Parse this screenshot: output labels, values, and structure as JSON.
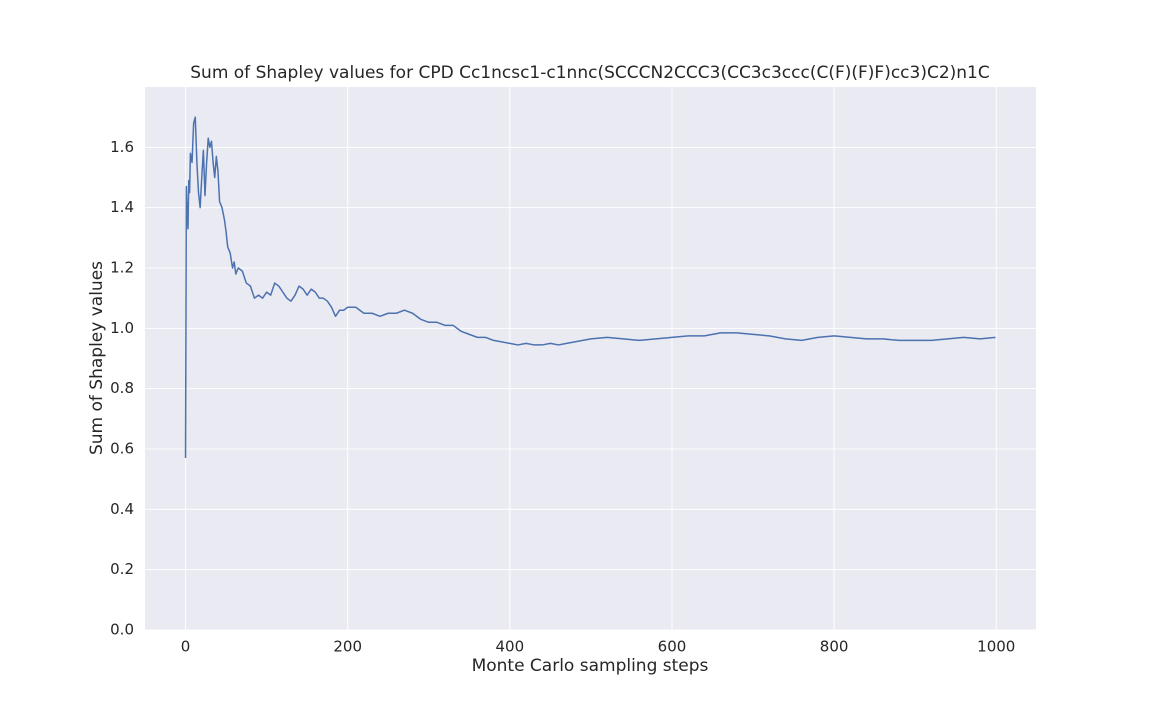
{
  "chart_data": {
    "type": "line",
    "title": "Sum of Shapley values for CPD Cc1ncsc1-c1nnc(SCCCN2CCC3(CC3c3ccc(C(F)(F)F)cc3)C2)n1C",
    "x_label": "Monte Carlo sampling steps",
    "y_label": "Sum of Shapley values",
    "xlim": [
      -50,
      1049
    ],
    "ylim": [
      0,
      1.8
    ],
    "xticks": [
      0,
      200,
      400,
      600,
      800,
      1000
    ],
    "yticks": [
      {
        "value": 0,
        "label": "0.0"
      },
      0.2,
      0.4,
      0.6,
      0.8,
      {
        "value": 1,
        "label": "1.0"
      },
      1.2,
      1.4,
      1.6
    ],
    "grid": true,
    "x": [
      0,
      1,
      2,
      3,
      4,
      5,
      6,
      8,
      10,
      12,
      14,
      16,
      18,
      20,
      22,
      24,
      26,
      28,
      30,
      32,
      34,
      36,
      38,
      40,
      42,
      45,
      48,
      50,
      52,
      55,
      58,
      60,
      62,
      65,
      70,
      75,
      80,
      85,
      90,
      95,
      100,
      105,
      110,
      115,
      120,
      125,
      130,
      135,
      140,
      145,
      150,
      155,
      160,
      165,
      170,
      175,
      180,
      185,
      190,
      195,
      200,
      210,
      220,
      230,
      240,
      250,
      260,
      270,
      280,
      290,
      300,
      310,
      320,
      330,
      340,
      350,
      360,
      370,
      380,
      390,
      400,
      410,
      420,
      430,
      440,
      450,
      460,
      470,
      480,
      490,
      500,
      520,
      540,
      560,
      580,
      600,
      620,
      640,
      660,
      680,
      700,
      720,
      740,
      760,
      780,
      800,
      820,
      840,
      860,
      880,
      900,
      920,
      940,
      960,
      980,
      999
    ],
    "series": [
      {
        "name": "sum",
        "color": "#4c72b0",
        "values": [
          0.57,
          1.47,
          1.38,
          1.33,
          1.49,
          1.45,
          1.58,
          1.55,
          1.68,
          1.7,
          1.55,
          1.45,
          1.4,
          1.5,
          1.59,
          1.44,
          1.55,
          1.63,
          1.6,
          1.62,
          1.55,
          1.5,
          1.57,
          1.52,
          1.42,
          1.4,
          1.36,
          1.32,
          1.27,
          1.25,
          1.2,
          1.22,
          1.18,
          1.2,
          1.19,
          1.15,
          1.14,
          1.1,
          1.11,
          1.1,
          1.12,
          1.11,
          1.15,
          1.14,
          1.12,
          1.1,
          1.09,
          1.11,
          1.14,
          1.13,
          1.11,
          1.13,
          1.12,
          1.1,
          1.1,
          1.09,
          1.07,
          1.04,
          1.06,
          1.06,
          1.07,
          1.07,
          1.05,
          1.05,
          1.04,
          1.05,
          1.05,
          1.06,
          1.05,
          1.03,
          1.02,
          1.02,
          1.01,
          1.01,
          0.99,
          0.98,
          0.97,
          0.97,
          0.96,
          0.955,
          0.95,
          0.945,
          0.95,
          0.945,
          0.945,
          0.95,
          0.945,
          0.95,
          0.955,
          0.96,
          0.965,
          0.97,
          0.965,
          0.96,
          0.965,
          0.97,
          0.975,
          0.975,
          0.985,
          0.985,
          0.98,
          0.975,
          0.965,
          0.96,
          0.97,
          0.975,
          0.97,
          0.965,
          0.965,
          0.96,
          0.96,
          0.96,
          0.965,
          0.97,
          0.965,
          0.97
        ]
      }
    ]
  }
}
